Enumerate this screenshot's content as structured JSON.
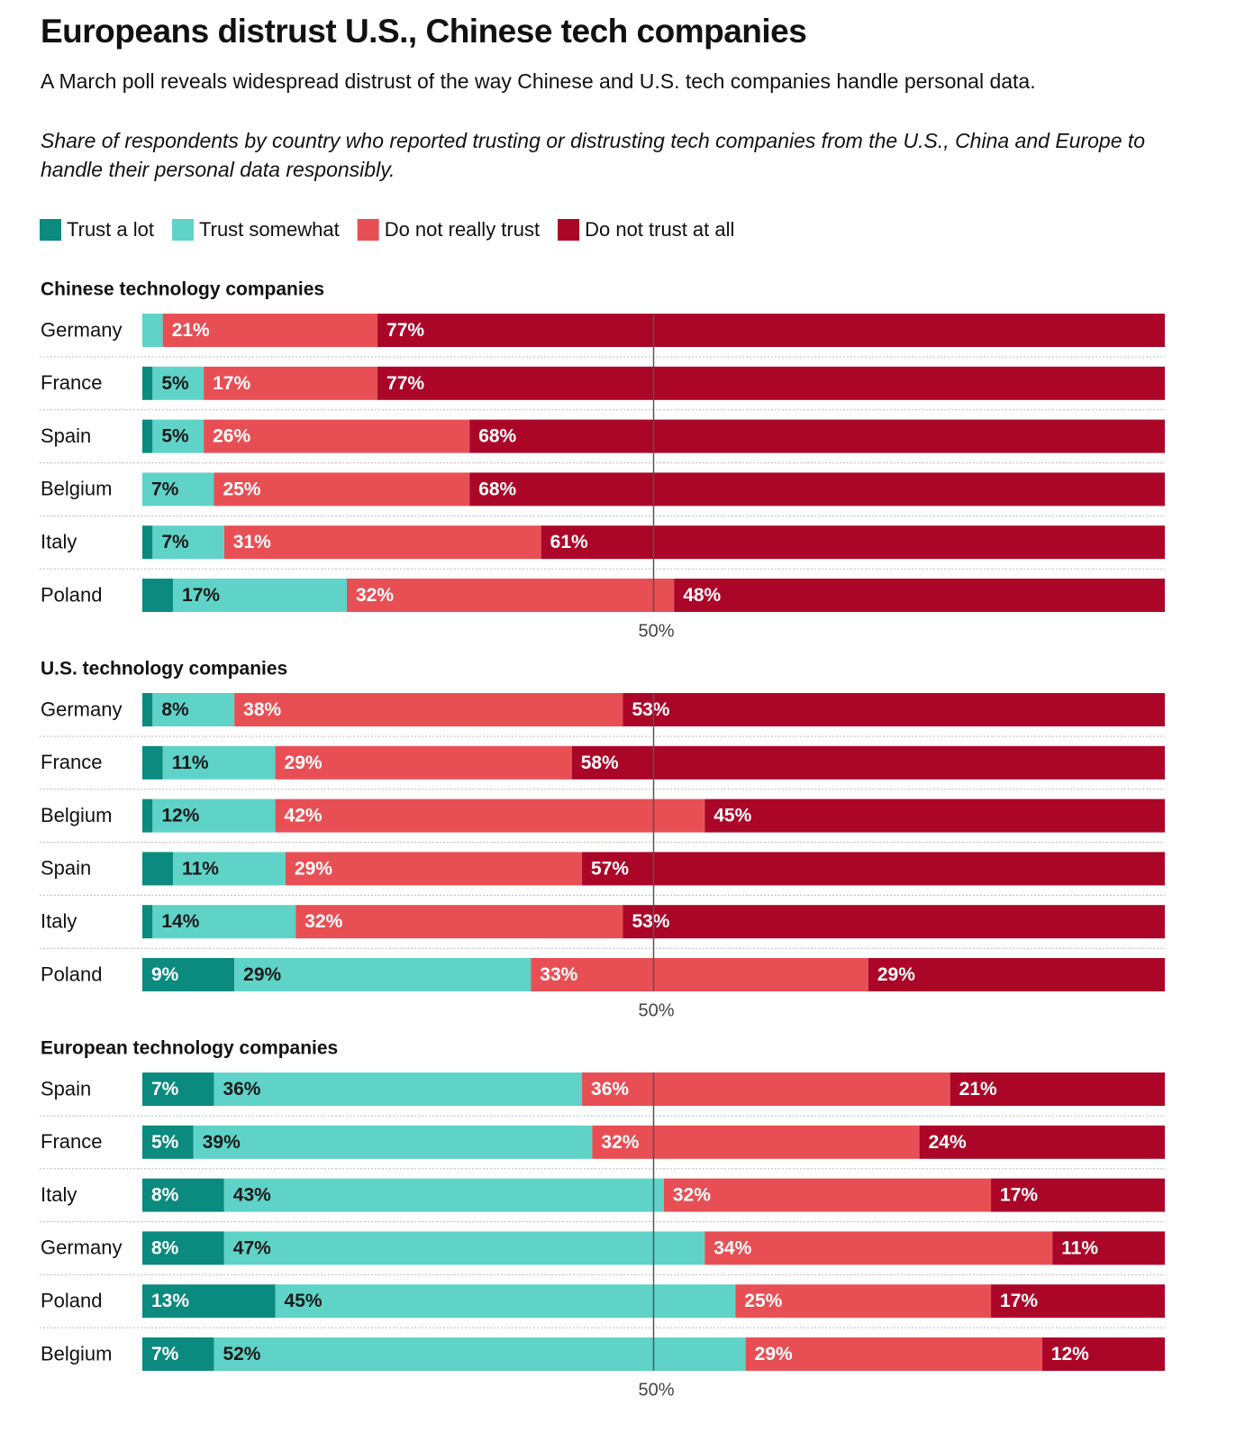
{
  "title": "Europeans distrust U.S., Chinese tech companies",
  "subtitle": "A March poll reveals widespread distrust of the way Chinese and U.S. tech companies handle personal data.",
  "description": "Share of respondents by country who reported trusting or distrusting tech companies from the U.S., China and Europe to handle their personal data responsibly.",
  "chart_data": [
    {
      "type": "bar",
      "orientation": "horizontal",
      "stacked": true,
      "title": "Chinese technology companies",
      "categories": [
        "Germany",
        "France",
        "Spain",
        "Belgium",
        "Italy",
        "Poland"
      ],
      "xlim": [
        0,
        100
      ],
      "xticks": [
        {
          "value": 50,
          "label": "50%"
        }
      ],
      "series": [
        {
          "name": "Trust a lot",
          "color": "#0b8a7f",
          "label_color": "#ffffff",
          "values": [
            0,
            1,
            1,
            0,
            1,
            3
          ],
          "value_labels": [
            null,
            null,
            null,
            null,
            null,
            null
          ]
        },
        {
          "name": "Trust somewhat",
          "color": "#5fd3c8",
          "label_color": "#1a1a1a",
          "values": [
            2,
            5,
            5,
            7,
            7,
            17
          ],
          "value_labels": [
            null,
            "5%",
            "5%",
            "7%",
            "7%",
            "17%"
          ]
        },
        {
          "name": "Do not really trust",
          "color": "#e84f55",
          "label_color": "#ffffff",
          "values": [
            21,
            17,
            26,
            25,
            31,
            32
          ],
          "value_labels": [
            "21%",
            "17%",
            "26%",
            "25%",
            "31%",
            "32%"
          ]
        },
        {
          "name": "Do not trust at all",
          "color": "#ab0628",
          "label_color": "#ffffff",
          "values": [
            77,
            77,
            68,
            68,
            61,
            48
          ],
          "value_labels": [
            "77%",
            "77%",
            "68%",
            "68%",
            "61%",
            "48%"
          ]
        }
      ]
    },
    {
      "type": "bar",
      "orientation": "horizontal",
      "stacked": true,
      "title": "U.S. technology companies",
      "categories": [
        "Germany",
        "France",
        "Belgium",
        "Spain",
        "Italy",
        "Poland"
      ],
      "xlim": [
        0,
        100
      ],
      "xticks": [
        {
          "value": 50,
          "label": "50%"
        }
      ],
      "series": [
        {
          "name": "Trust a lot",
          "color": "#0b8a7f",
          "label_color": "#ffffff",
          "values": [
            1,
            2,
            1,
            3,
            1,
            9
          ],
          "value_labels": [
            null,
            null,
            null,
            null,
            null,
            "9%"
          ]
        },
        {
          "name": "Trust somewhat",
          "color": "#5fd3c8",
          "label_color": "#1a1a1a",
          "values": [
            8,
            11,
            12,
            11,
            14,
            29
          ],
          "value_labels": [
            "8%",
            "11%",
            "12%",
            "11%",
            "14%",
            "29%"
          ]
        },
        {
          "name": "Do not really trust",
          "color": "#e84f55",
          "label_color": "#ffffff",
          "values": [
            38,
            29,
            42,
            29,
            32,
            33
          ],
          "value_labels": [
            "38%",
            "29%",
            "42%",
            "29%",
            "32%",
            "33%"
          ]
        },
        {
          "name": "Do not trust at all",
          "color": "#ab0628",
          "label_color": "#ffffff",
          "values": [
            53,
            58,
            45,
            57,
            53,
            29
          ],
          "value_labels": [
            "53%",
            "58%",
            "45%",
            "57%",
            "53%",
            "29%"
          ]
        }
      ]
    },
    {
      "type": "bar",
      "orientation": "horizontal",
      "stacked": true,
      "title": "European technology companies",
      "categories": [
        "Spain",
        "France",
        "Italy",
        "Germany",
        "Poland",
        "Belgium"
      ],
      "xlim": [
        0,
        100
      ],
      "xticks": [
        {
          "value": 50,
          "label": "50%"
        }
      ],
      "series": [
        {
          "name": "Trust a lot",
          "color": "#0b8a7f",
          "label_color": "#ffffff",
          "values": [
            7,
            5,
            8,
            8,
            13,
            7
          ],
          "value_labels": [
            "7%",
            "5%",
            "8%",
            "8%",
            "13%",
            "7%"
          ]
        },
        {
          "name": "Trust somewhat",
          "color": "#5fd3c8",
          "label_color": "#1a1a1a",
          "values": [
            36,
            39,
            43,
            47,
            45,
            52
          ],
          "value_labels": [
            "36%",
            "39%",
            "43%",
            "47%",
            "45%",
            "52%"
          ]
        },
        {
          "name": "Do not really trust",
          "color": "#e84f55",
          "label_color": "#ffffff",
          "values": [
            36,
            32,
            32,
            34,
            25,
            29
          ],
          "value_labels": [
            "36%",
            "32%",
            "32%",
            "34%",
            "25%",
            "29%"
          ]
        },
        {
          "name": "Do not trust at all",
          "color": "#ab0628",
          "label_color": "#ffffff",
          "values": [
            21,
            24,
            17,
            11,
            17,
            12
          ],
          "value_labels": [
            "21%",
            "24%",
            "17%",
            "11%",
            "17%",
            "12%"
          ]
        }
      ]
    }
  ]
}
